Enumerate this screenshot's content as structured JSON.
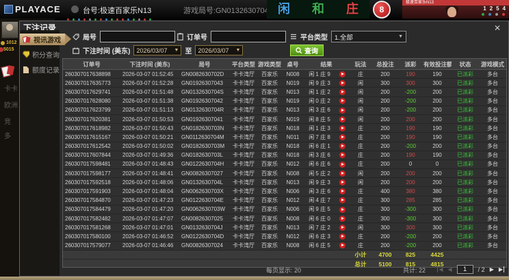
{
  "topbar": {
    "brand": "PLAYACE",
    "table_label": "台号:极速百家乐N13",
    "round_label": "游戏局号:GN0132630704V",
    "bet_spots": [
      {
        "label": "闲",
        "color": "#4aa0e0"
      },
      {
        "label": "和",
        "color": "#3fae52"
      },
      {
        "label": "庄",
        "color": "#e04545"
      }
    ],
    "result_ball": "8",
    "video": {
      "banner": "极速百家乐N13",
      "counters": [
        "1",
        "2",
        "5",
        "4"
      ],
      "counter_dot_colors": [
        "#2fa84f",
        "#3a86c8",
        "#9a9a9a",
        "#d23a3a"
      ]
    },
    "road_dot_colors": [
      "#c33b3b",
      "#2fa84f",
      "#3a86c8",
      "#c33b3b",
      "#8a8a8a",
      "#2fa84f",
      "#c33b3b",
      "#3a86c8",
      "#2fa84f",
      "#c33b3b",
      "#c33b3b",
      "#3a86c8",
      "#2fa84f",
      "#8a8a8a",
      "#c33b3b",
      "#2fa84f"
    ]
  },
  "background": {
    "balance_1": "1012",
    "balance_2": "5015",
    "menu_fragments": [
      "卡卡",
      "欧洲",
      "竞",
      "多"
    ]
  },
  "modal": {
    "title": "下注记录",
    "close_glyph": "✕",
    "sidebar": [
      {
        "label": "视讯游戏"
      },
      {
        "label": "积分查询"
      },
      {
        "label": "额度记录"
      }
    ],
    "filters": {
      "round_label": "局号",
      "round_value": "",
      "order_label": "订单号",
      "order_value": "",
      "platform_label": "平台类型",
      "platform_value": "1.全部",
      "time_label": "下注时间 (美东)",
      "date_from": "2026/03/07",
      "to_label": "至",
      "date_to": "2026/03/07",
      "search_label": "查询"
    },
    "table": {
      "headers": [
        "订单号",
        "下注时间 (美东)",
        "局号",
        "平台类型",
        "游戏类型",
        "桌号",
        "结果",
        "玩法",
        "总投注",
        "派彩",
        "有效投注额",
        "状态",
        "游戏模式"
      ],
      "rows": [
        {
          "order": "260307017638898",
          "time": "2026-03-07 01:52:45",
          "round": "GN0082630702D",
          "platform": "卡卡湾厅",
          "game": "百家乐",
          "table": "N008",
          "result": "闲 1 庄 9",
          "play": "庄",
          "bet": "200",
          "payout": "190",
          "valid": "190",
          "status": "已派彩",
          "mode": "多台"
        },
        {
          "order": "260307017635773",
          "time": "2026-03-07 01:52:28",
          "round": "GN01926307043",
          "platform": "卡卡湾厅",
          "game": "百家乐",
          "table": "N019",
          "result": "闲 9 庄 3",
          "play": "闲",
          "bet": "300",
          "payout": "300",
          "valid": "300",
          "status": "已派彩",
          "mode": "多台"
        },
        {
          "order": "260307017629741",
          "time": "2026-03-07 01:51:48",
          "round": "GN0132630704S",
          "platform": "卡卡湾厅",
          "game": "百家乐",
          "table": "N013",
          "result": "闲 1 庄 2",
          "play": "闲",
          "bet": "200",
          "payout": "-200",
          "valid": "200",
          "status": "已派彩",
          "mode": "多台"
        },
        {
          "order": "260307017628080",
          "time": "2026-03-07 01:51:38",
          "round": "GN01926307042",
          "platform": "卡卡湾厅",
          "game": "百家乐",
          "table": "N019",
          "result": "闲 0 庄 2",
          "play": "闲",
          "bet": "200",
          "payout": "-200",
          "valid": "200",
          "status": "已派彩",
          "mode": "多台"
        },
        {
          "order": "260307017623799",
          "time": "2026-03-07 01:51:13",
          "round": "GN0132630704R",
          "platform": "卡卡湾厅",
          "game": "百家乐",
          "table": "N013",
          "result": "闲 3 庄 6",
          "play": "闲",
          "bet": "200",
          "payout": "-200",
          "valid": "200",
          "status": "已派彩",
          "mode": "多台"
        },
        {
          "order": "260307017620381",
          "time": "2026-03-07 01:50:53",
          "round": "GN01926307041",
          "platform": "卡卡湾厅",
          "game": "百家乐",
          "table": "N019",
          "result": "闲 8 庄 5",
          "play": "闲",
          "bet": "200",
          "payout": "200",
          "valid": "200",
          "status": "已派彩",
          "mode": "多台"
        },
        {
          "order": "260307017618982",
          "time": "2026-03-07 01:50:43",
          "round": "GN0182630703N",
          "platform": "卡卡湾厅",
          "game": "百家乐",
          "table": "N018",
          "result": "闲 1 庄 3",
          "play": "庄",
          "bet": "200",
          "payout": "190",
          "valid": "190",
          "status": "已派彩",
          "mode": "多台"
        },
        {
          "order": "260307017615167",
          "time": "2026-03-07 01:50:21",
          "round": "GN0112630704M",
          "platform": "卡卡湾厅",
          "game": "百家乐",
          "table": "N011",
          "result": "闲 7 庄 8",
          "play": "庄",
          "bet": "200",
          "payout": "190",
          "valid": "190",
          "status": "已派彩",
          "mode": "多台"
        },
        {
          "order": "260307017612542",
          "time": "2026-03-07 01:50:02",
          "round": "GN0182630703M",
          "platform": "卡卡湾厅",
          "game": "百家乐",
          "table": "N018",
          "result": "闲 6 庄 1",
          "play": "庄",
          "bet": "200",
          "payout": "-200",
          "valid": "200",
          "status": "已派彩",
          "mode": "多台"
        },
        {
          "order": "260307017607844",
          "time": "2026-03-07 01:49:36",
          "round": "GN0182630703L",
          "platform": "卡卡湾厅",
          "game": "百家乐",
          "table": "N018",
          "result": "闲 3 庄 6",
          "play": "庄",
          "bet": "200",
          "payout": "190",
          "valid": "190",
          "status": "已派彩",
          "mode": "多台"
        },
        {
          "order": "260307017598481",
          "time": "2026-03-07 01:48:43",
          "round": "GN0122630704H",
          "platform": "卡卡湾厅",
          "game": "百家乐",
          "table": "N012",
          "result": "闲 6 庄 6",
          "play": "庄",
          "bet": "200",
          "payout": "0",
          "valid": "0",
          "status": "已派彩",
          "mode": "多台"
        },
        {
          "order": "260307017598177",
          "time": "2026-03-07 01:48:41",
          "round": "GN00826307027",
          "platform": "卡卡湾厅",
          "game": "百家乐",
          "table": "N008",
          "result": "闲 5 庄 2",
          "play": "闲",
          "bet": "200",
          "payout": "200",
          "valid": "200",
          "status": "已派彩",
          "mode": "多台"
        },
        {
          "order": "260307017592518",
          "time": "2026-03-07 01:48:06",
          "round": "GN0132630704L",
          "platform": "卡卡湾厅",
          "game": "百家乐",
          "table": "N013",
          "result": "闲 9 庄 3",
          "play": "闲",
          "bet": "200",
          "payout": "200",
          "valid": "200",
          "status": "已派彩",
          "mode": "多台"
        },
        {
          "order": "260307017591903",
          "time": "2026-03-07 01:48:04",
          "round": "GN0062630703X",
          "platform": "卡卡湾厅",
          "game": "百家乐",
          "table": "N006",
          "result": "闲 3 庄 6",
          "play": "庄",
          "bet": "400",
          "payout": "380",
          "valid": "380",
          "status": "已派彩",
          "mode": "多台"
        },
        {
          "order": "260307017584870",
          "time": "2026-03-07 01:47:23",
          "round": "GN0122630704E",
          "platform": "卡卡湾厅",
          "game": "百家乐",
          "table": "N012",
          "result": "闲 4 庄 7",
          "play": "庄",
          "bet": "300",
          "payout": "285",
          "valid": "285",
          "status": "已派彩",
          "mode": "多台"
        },
        {
          "order": "260307017584479",
          "time": "2026-03-07 01:47:20",
          "round": "GN0062630703W",
          "platform": "卡卡湾厅",
          "game": "百家乐",
          "table": "N006",
          "result": "闲 9 庄 5",
          "play": "庄",
          "bet": "300",
          "payout": "-300",
          "valid": "300",
          "status": "已派彩",
          "mode": "多台"
        },
        {
          "order": "260307017582482",
          "time": "2026-03-07 01:47:07",
          "round": "GN00826307025",
          "platform": "卡卡湾厅",
          "game": "百家乐",
          "table": "N008",
          "result": "闲 6 庄 0",
          "play": "庄",
          "bet": "300",
          "payout": "-300",
          "valid": "300",
          "status": "已派彩",
          "mode": "多台"
        },
        {
          "order": "260307017581268",
          "time": "2026-03-07 01:47:01",
          "round": "GN0132630704J",
          "platform": "卡卡湾厅",
          "game": "百家乐",
          "table": "N013",
          "result": "闲 7 庄 2",
          "play": "闲",
          "bet": "300",
          "payout": "300",
          "valid": "300",
          "status": "已派彩",
          "mode": "多台"
        },
        {
          "order": "260307017580100",
          "time": "2026-03-07 01:46:52",
          "round": "GN0122630704D",
          "platform": "卡卡湾厅",
          "game": "百家乐",
          "table": "N012",
          "result": "闲 6 庄 3",
          "play": "庄",
          "bet": "200",
          "payout": "-200",
          "valid": "200",
          "status": "已派彩",
          "mode": "多台"
        },
        {
          "order": "260307017579077",
          "time": "2026-03-07 01:46:46",
          "round": "GN00826307024",
          "platform": "卡卡湾厅",
          "game": "百家乐",
          "table": "N008",
          "result": "闲 6 庄 5",
          "play": "庄",
          "bet": "200",
          "payout": "-200",
          "valid": "200",
          "status": "已派彩",
          "mode": "多台"
        }
      ],
      "subtotal": {
        "label": "小计",
        "bet": "4700",
        "payout": "825",
        "valid": "4425"
      },
      "total": {
        "label": "总计",
        "bet": "5100",
        "payout": "815",
        "valid": "4815"
      }
    },
    "pagination": {
      "per_page_label": "每页显示: 20",
      "total_label": "共计: 22",
      "first_glyph": "◀",
      "prev_glyph": "◀",
      "page_value": "1",
      "pages_label": "/ 2",
      "next_glyph": "▶",
      "last_glyph": "▶"
    }
  }
}
